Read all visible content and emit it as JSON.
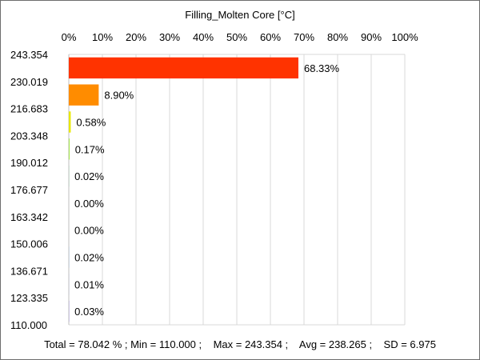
{
  "chart_data": {
    "type": "bar",
    "orientation": "horizontal",
    "title": "Filling_Molten Core [°C]",
    "x_ticks": [
      "0%",
      "10%",
      "20%",
      "30%",
      "40%",
      "50%",
      "60%",
      "70%",
      "80%",
      "90%",
      "100%"
    ],
    "xlim": [
      0,
      100
    ],
    "y_ticks": [
      "243.354",
      "230.019",
      "216.683",
      "203.348",
      "190.012",
      "176.677",
      "163.342",
      "150.006",
      "136.671",
      "123.335",
      "110.000"
    ],
    "values": [
      68.33,
      8.9,
      0.58,
      0.17,
      0.02,
      0.0,
      0.0,
      0.02,
      0.01,
      0.03
    ],
    "value_labels": [
      "68.33%",
      "8.90%",
      "0.58%",
      "0.17%",
      "0.02%",
      "0.00%",
      "0.00%",
      "0.02%",
      "0.01%",
      "0.03%"
    ],
    "bar_colors": [
      "#ff3300",
      "#ff8c00",
      "#e8e800",
      "#80dd00",
      "#00c040",
      "#00c8a0",
      "#00b0e0",
      "#0070f0",
      "#2040ff",
      "#3000e0"
    ],
    "grid": true,
    "footer": "Total = 78.042 % ; Min = 110.000 ;    Max = 243.354 ;    Avg = 238.265 ;    SD = 6.975"
  }
}
